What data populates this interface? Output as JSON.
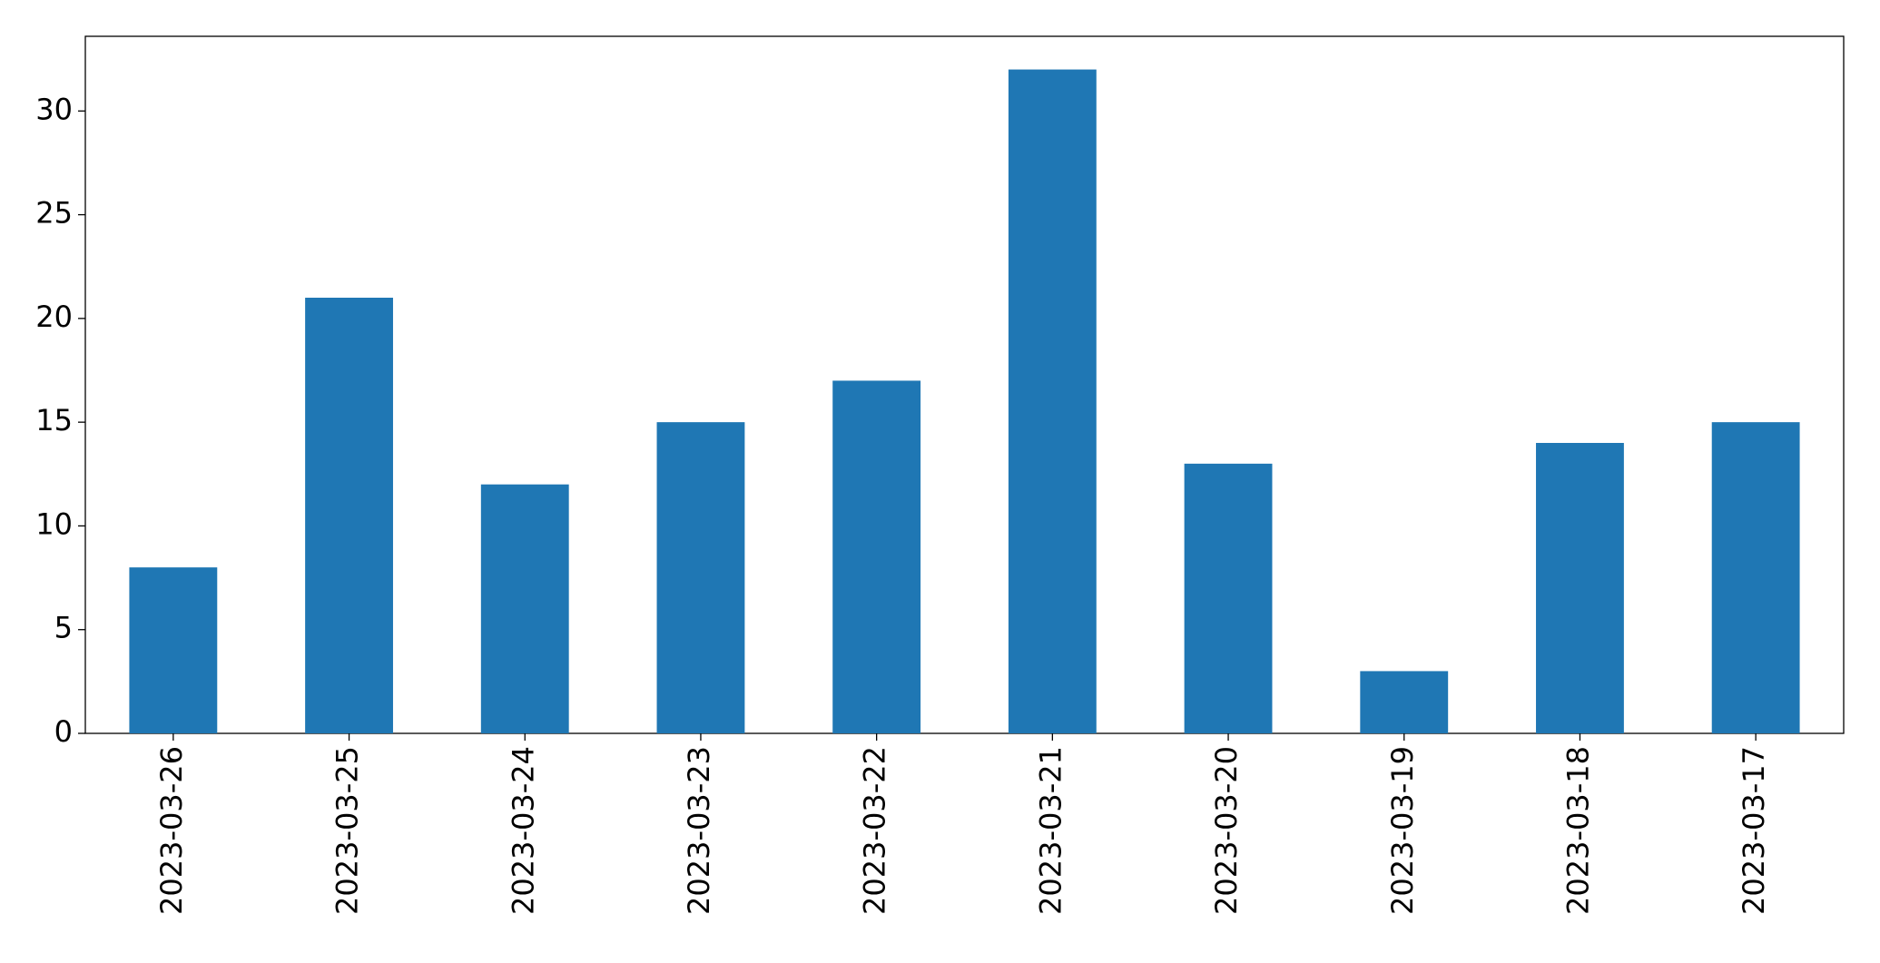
{
  "chart_data": {
    "type": "bar",
    "categories": [
      "2023-03-26",
      "2023-03-25",
      "2023-03-24",
      "2023-03-23",
      "2023-03-22",
      "2023-03-21",
      "2023-03-20",
      "2023-03-19",
      "2023-03-18",
      "2023-03-17"
    ],
    "values": [
      8,
      21,
      12,
      15,
      17,
      32,
      13,
      3,
      14,
      15
    ],
    "color": "#1f77b4",
    "ylim": [
      0,
      33.6
    ],
    "yticks": [
      0,
      5,
      10,
      15,
      20,
      25,
      30
    ],
    "grid": false
  }
}
